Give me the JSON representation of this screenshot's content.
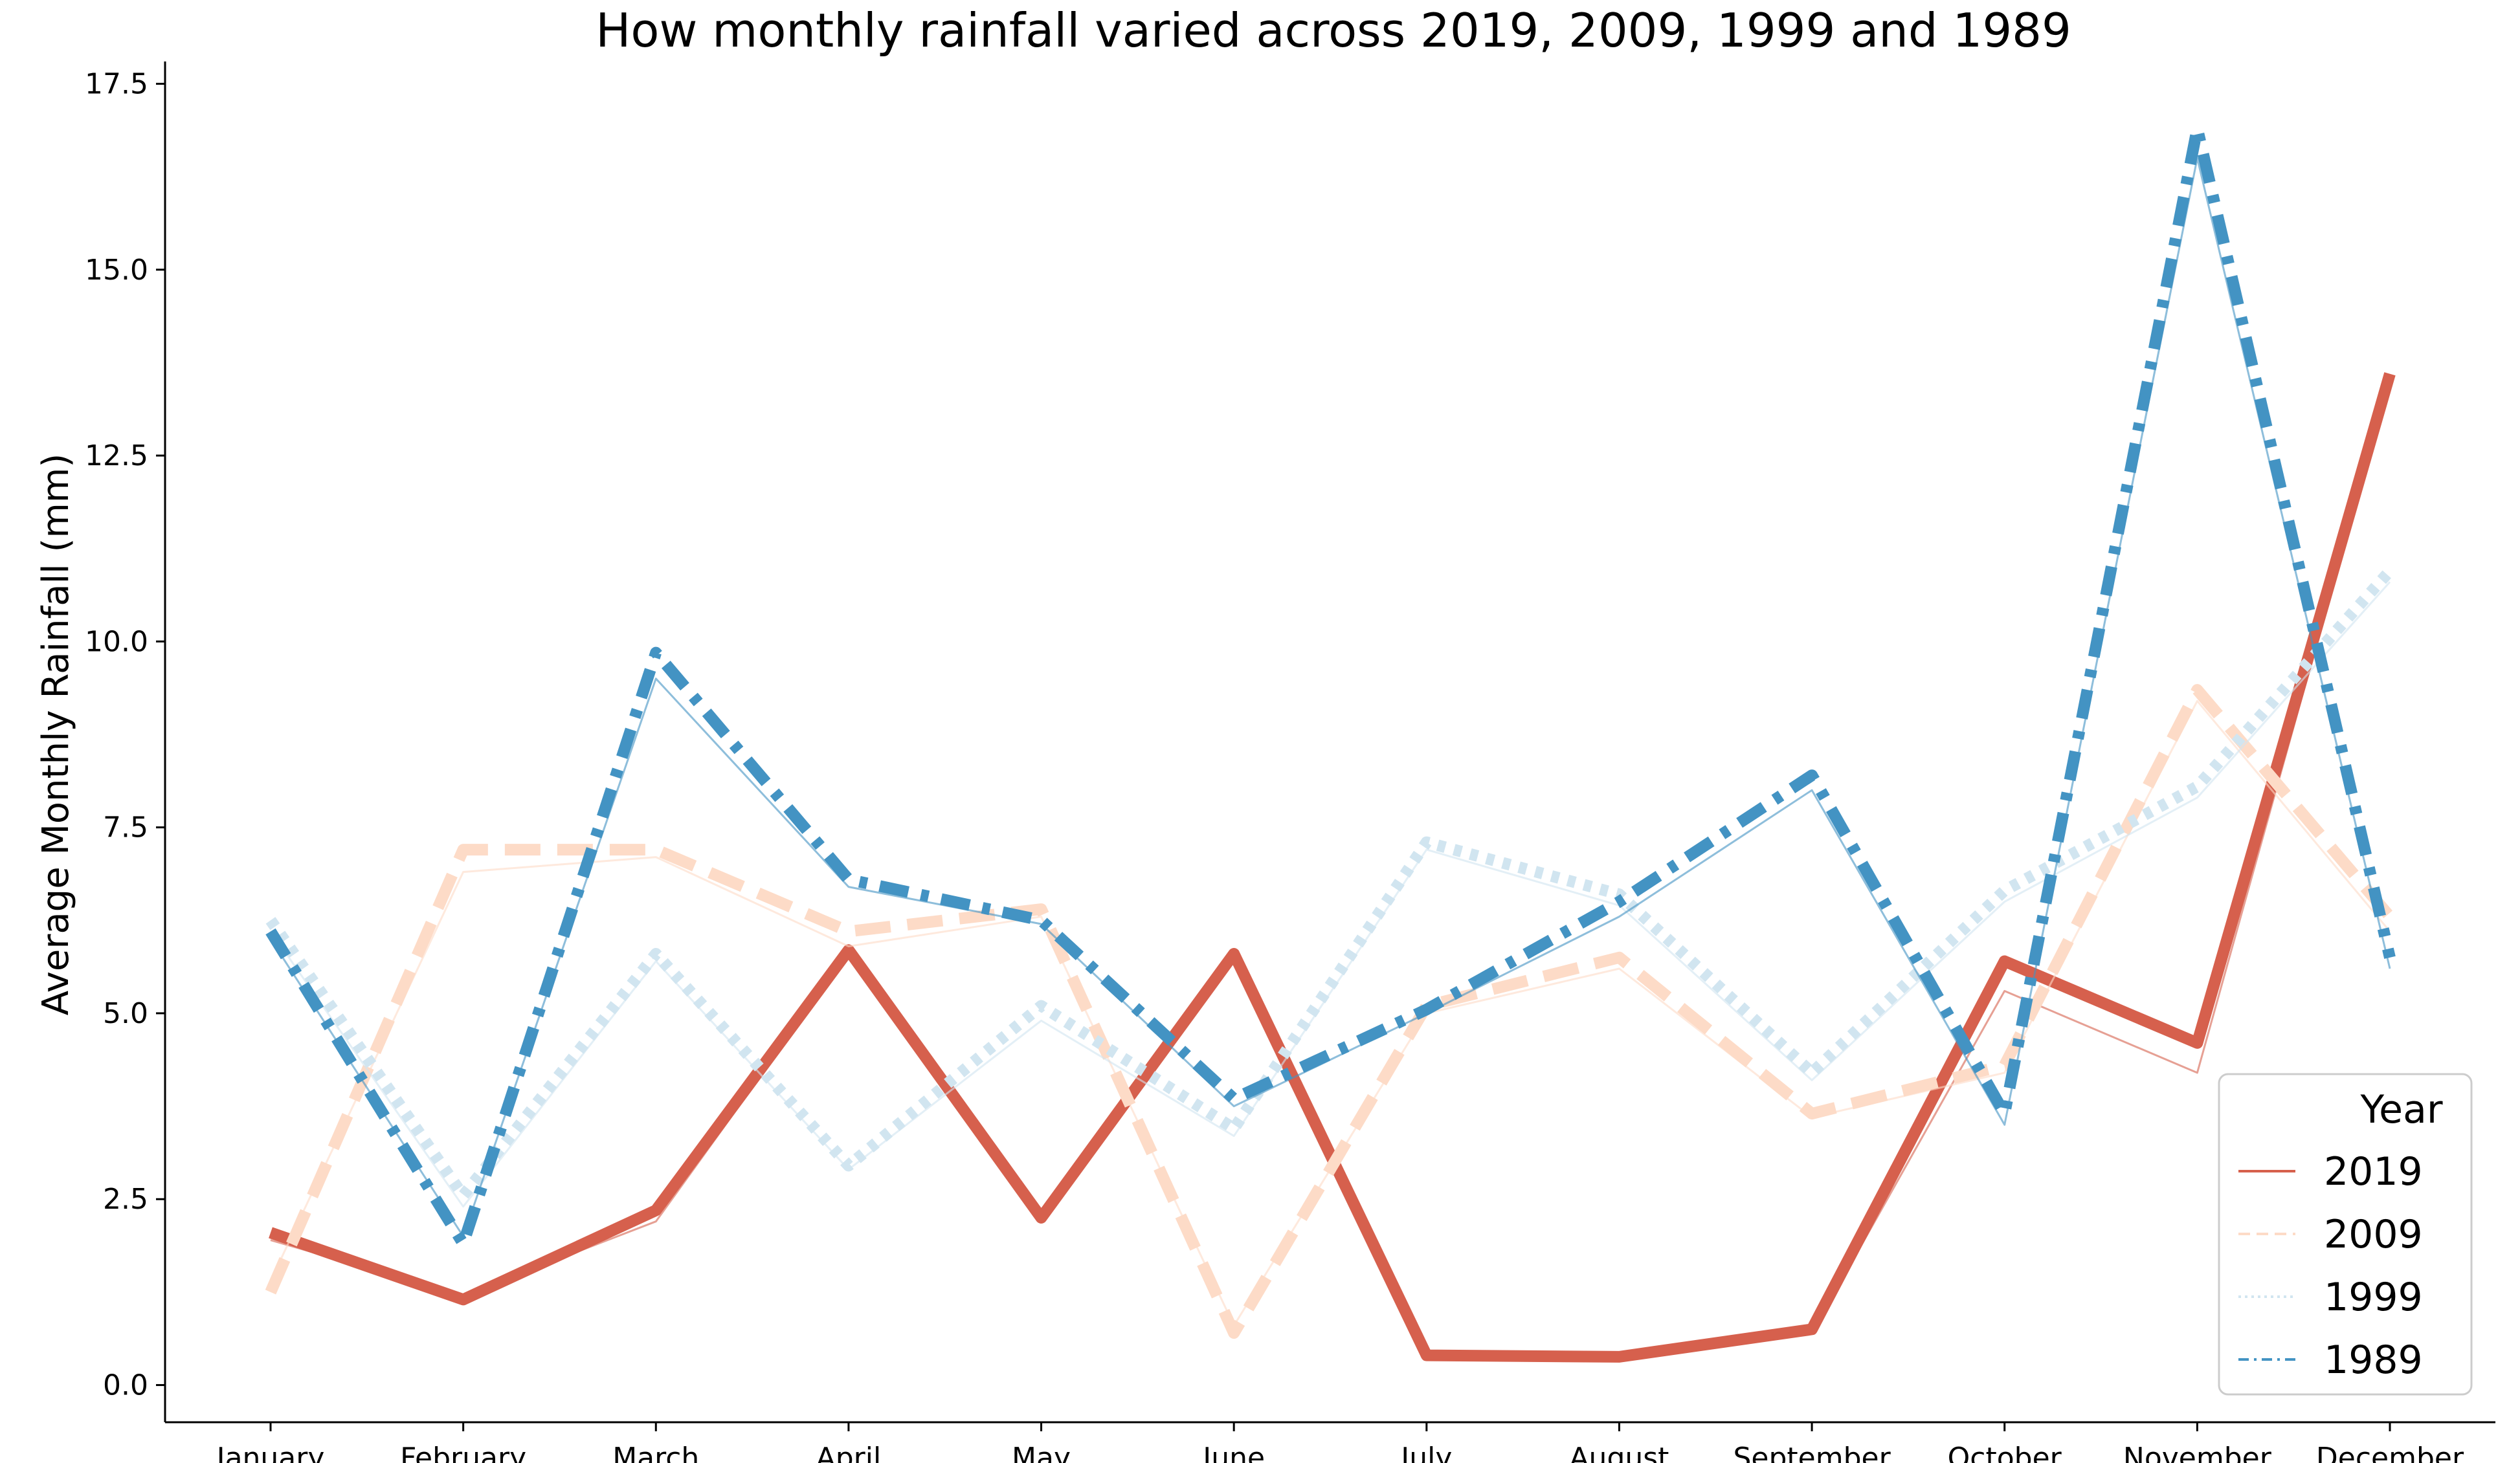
{
  "chart_data": {
    "type": "line",
    "title": "How monthly rainfall varied across 2019, 2009, 1999 and 1989",
    "xlabel": "",
    "ylabel": "Average Monthly Rainfall (mm)",
    "categories": [
      "January",
      "February",
      "March",
      "April",
      "May",
      "June",
      "July",
      "August",
      "September",
      "October",
      "November",
      "December"
    ],
    "ylim": [
      -0.5,
      17.8
    ],
    "yticks": [
      0.0,
      2.5,
      5.0,
      7.5,
      10.0,
      12.5,
      15.0,
      17.5
    ],
    "ytick_labels": [
      "0.0",
      "2.5",
      "5.0",
      "7.5",
      "10.0",
      "12.5",
      "15.0",
      "17.5"
    ],
    "grid": false,
    "legend": {
      "title": "Year",
      "placement": "lower-right"
    },
    "series": [
      {
        "name": "2019",
        "color": "#d6604d",
        "style": "solid",
        "values": [
          2.05,
          1.15,
          2.35,
          5.85,
          2.25,
          5.8,
          0.4,
          0.38,
          0.75,
          5.7,
          4.6,
          13.6
        ],
        "shadow_values": [
          1.95,
          1.2,
          2.2,
          5.8,
          2.3,
          5.75,
          0.35,
          0.35,
          0.7,
          5.3,
          4.2,
          13.5
        ]
      },
      {
        "name": "2009",
        "color": "#fddbc7",
        "style": "dashed",
        "values": [
          1.25,
          7.2,
          7.2,
          6.1,
          6.4,
          0.7,
          5.1,
          5.75,
          3.65,
          4.3,
          9.35,
          6.3
        ],
        "shadow_values": [
          1.4,
          6.9,
          7.1,
          5.9,
          6.3,
          0.8,
          5.0,
          5.6,
          3.6,
          4.2,
          9.2,
          6.1
        ]
      },
      {
        "name": "1999",
        "color": "#d1e5f0",
        "style": "dotted",
        "values": [
          6.25,
          2.55,
          5.8,
          2.95,
          5.1,
          3.45,
          7.3,
          6.6,
          4.2,
          6.65,
          8.05,
          10.95
        ],
        "shadow_values": [
          6.1,
          2.4,
          5.7,
          2.9,
          4.9,
          3.35,
          7.2,
          6.45,
          4.1,
          6.5,
          7.9,
          10.8
        ]
      },
      {
        "name": "1989",
        "color": "#4393c3",
        "style": "dashdot",
        "values": [
          6.1,
          1.9,
          9.85,
          6.8,
          6.25,
          3.85,
          5.05,
          6.5,
          8.2,
          3.65,
          16.9,
          5.75
        ],
        "shadow_values": [
          6.0,
          2.0,
          9.5,
          6.7,
          6.2,
          3.75,
          5.0,
          6.3,
          8.0,
          3.5,
          16.5,
          5.6
        ]
      }
    ]
  }
}
